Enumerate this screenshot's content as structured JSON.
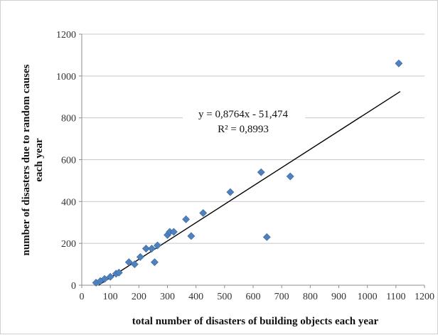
{
  "chart_data": {
    "type": "scatter",
    "title": "",
    "xlabel": "total number of disasters of building objects each year",
    "ylabel_lines": [
      "number of disasters due to random causes",
      "each year"
    ],
    "xlim": [
      0,
      1200
    ],
    "ylim": [
      0,
      1200
    ],
    "xticks": [
      0,
      100,
      200,
      300,
      400,
      500,
      600,
      700,
      800,
      900,
      1000,
      1100,
      1200
    ],
    "yticks": [
      0,
      200,
      400,
      600,
      800,
      1000,
      1200
    ],
    "grid": "horizontal",
    "legend": "none",
    "marker": "diamond",
    "points": [
      {
        "x": 50,
        "y": 12
      },
      {
        "x": 65,
        "y": 20
      },
      {
        "x": 80,
        "y": 30
      },
      {
        "x": 100,
        "y": 40
      },
      {
        "x": 120,
        "y": 55
      },
      {
        "x": 130,
        "y": 60
      },
      {
        "x": 165,
        "y": 110
      },
      {
        "x": 185,
        "y": 100
      },
      {
        "x": 205,
        "y": 135
      },
      {
        "x": 225,
        "y": 175
      },
      {
        "x": 245,
        "y": 175
      },
      {
        "x": 255,
        "y": 110
      },
      {
        "x": 265,
        "y": 190
      },
      {
        "x": 300,
        "y": 240
      },
      {
        "x": 308,
        "y": 255
      },
      {
        "x": 322,
        "y": 255
      },
      {
        "x": 365,
        "y": 315
      },
      {
        "x": 383,
        "y": 235
      },
      {
        "x": 425,
        "y": 345
      },
      {
        "x": 520,
        "y": 445
      },
      {
        "x": 628,
        "y": 540
      },
      {
        "x": 648,
        "y": 230
      },
      {
        "x": 730,
        "y": 520
      },
      {
        "x": 1110,
        "y": 1060
      }
    ],
    "trendline": {
      "type": "linear",
      "slope": 0.8764,
      "intercept": -51.474,
      "x_range": [
        59,
        1115
      ],
      "equation_text": "y = 0,8764x - 51,474",
      "r2_text": "R² = 0,8993"
    },
    "colors": {
      "marker": "#4f81bd",
      "marker_edge": "#3a66a0",
      "trendline": "#000000",
      "grid": "#c8c8c8",
      "axis": "#8c8c8c"
    }
  }
}
